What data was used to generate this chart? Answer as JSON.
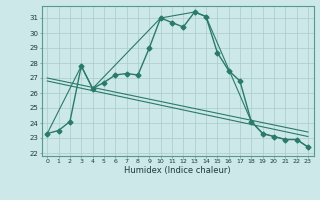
{
  "title": "",
  "xlabel": "Humidex (Indice chaleur)",
  "background_color": "#cce8e8",
  "grid_color": "#aacccc",
  "line_color": "#2a7a6a",
  "xlim": [
    -0.5,
    23.5
  ],
  "ylim": [
    21.8,
    31.8
  ],
  "yticks": [
    22,
    23,
    24,
    25,
    26,
    27,
    28,
    29,
    30,
    31
  ],
  "xticks": [
    0,
    1,
    2,
    3,
    4,
    5,
    6,
    7,
    8,
    9,
    10,
    11,
    12,
    13,
    14,
    15,
    16,
    17,
    18,
    19,
    20,
    21,
    22,
    23
  ],
  "series": [
    {
      "x": [
        0,
        1,
        2,
        3,
        4,
        5,
        6,
        7,
        8,
        9,
        10,
        11,
        12,
        13,
        14,
        15,
        16,
        17,
        18,
        19,
        20,
        21,
        22,
        23
      ],
      "y": [
        23.3,
        23.5,
        24.1,
        27.8,
        26.3,
        26.7,
        27.2,
        27.3,
        27.2,
        29.0,
        31.0,
        30.7,
        30.4,
        31.4,
        31.1,
        28.7,
        27.5,
        26.8,
        24.1,
        23.3,
        23.1,
        22.9,
        22.9,
        22.4
      ],
      "marker": "D",
      "markersize": 2.5,
      "linewidth": 1.0
    },
    {
      "x": [
        0,
        3,
        4,
        10,
        13,
        14,
        18,
        19,
        20,
        21,
        22,
        23
      ],
      "y": [
        23.3,
        27.8,
        26.3,
        31.0,
        31.4,
        31.1,
        24.1,
        23.3,
        23.1,
        22.9,
        22.9,
        22.4
      ],
      "marker": null,
      "linewidth": 0.8
    },
    {
      "x": [
        0,
        23
      ],
      "y": [
        26.8,
        23.1
      ],
      "marker": null,
      "linewidth": 0.8
    },
    {
      "x": [
        0,
        23
      ],
      "y": [
        27.0,
        23.4
      ],
      "marker": null,
      "linewidth": 0.8
    }
  ]
}
